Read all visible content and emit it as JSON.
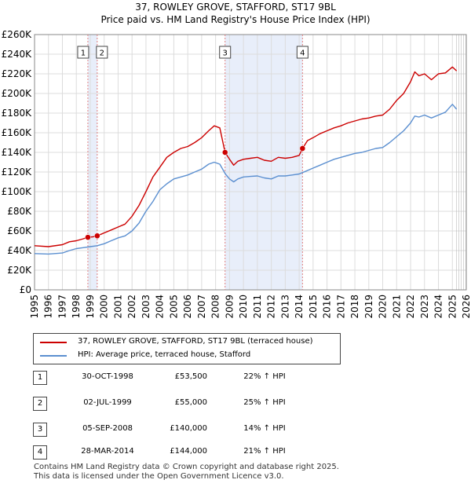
{
  "header": {
    "title": "37, ROWLEY GROVE, STAFFORD, ST17 9BL",
    "subtitle": "Price paid vs. HM Land Registry's House Price Index (HPI)"
  },
  "colors": {
    "property": "#cc0000",
    "hpi": "#5b8fd0",
    "shade": "#e8eefa",
    "grid": "#dcdcdc",
    "vline": "#e08080"
  },
  "chart_data": {
    "type": "line",
    "title": "Price paid vs. HM Land Registry's House Price Index (HPI)",
    "xlabel": "",
    "ylabel": "",
    "xlim": [
      1995,
      2026
    ],
    "ylim": [
      0,
      260000
    ],
    "y_ticks": [
      0,
      20000,
      40000,
      60000,
      80000,
      100000,
      120000,
      140000,
      160000,
      180000,
      200000,
      220000,
      240000,
      260000
    ],
    "y_tick_labels": [
      "£0",
      "£20K",
      "£40K",
      "£60K",
      "£80K",
      "£100K",
      "£120K",
      "£140K",
      "£160K",
      "£180K",
      "£200K",
      "£220K",
      "£240K",
      "£260K"
    ],
    "x_ticks": [
      1995,
      1996,
      1997,
      1998,
      1999,
      2000,
      2001,
      2002,
      2003,
      2004,
      2005,
      2006,
      2007,
      2008,
      2009,
      2010,
      2011,
      2012,
      2013,
      2014,
      2015,
      2016,
      2017,
      2018,
      2019,
      2020,
      2021,
      2022,
      2023,
      2024,
      2025,
      2026
    ],
    "x_tick_labels": [
      "1995",
      "1996",
      "1997",
      "1998",
      "1999",
      "2000",
      "2001",
      "2002",
      "2003",
      "2004",
      "2005",
      "2006",
      "2007",
      "2008",
      "2009",
      "2010",
      "2011",
      "2012",
      "2013",
      "2014",
      "2015",
      "2016",
      "2017",
      "2018",
      "2019",
      "2020",
      "2021",
      "2022",
      "2023",
      "2024",
      "2025",
      "2026"
    ],
    "grid": true,
    "series": [
      {
        "name": "37, ROWLEY GROVE, STAFFORD, ST17 9BL (terraced house)",
        "color": "#cc0000",
        "x": [
          1995.0,
          1996.0,
          1997.0,
          1997.5,
          1998.0,
          1998.5,
          1998.83,
          1999.2,
          1999.5,
          2000.0,
          2000.5,
          2001.0,
          2001.5,
          2002.0,
          2002.5,
          2003.0,
          2003.5,
          2004.0,
          2004.5,
          2005.0,
          2005.5,
          2006.0,
          2006.5,
          2007.0,
          2007.5,
          2007.9,
          2008.3,
          2008.68,
          2009.0,
          2009.3,
          2009.6,
          2010.0,
          2010.5,
          2011.0,
          2011.5,
          2012.0,
          2012.5,
          2013.0,
          2013.5,
          2014.0,
          2014.24,
          2014.6,
          2015.0,
          2015.5,
          2016.0,
          2016.5,
          2017.0,
          2017.5,
          2018.0,
          2018.5,
          2019.0,
          2019.5,
          2020.0,
          2020.5,
          2021.0,
          2021.5,
          2022.0,
          2022.3,
          2022.6,
          2023.0,
          2023.5,
          2024.0,
          2024.5,
          2025.0,
          2025.3
        ],
        "y": [
          45000,
          44000,
          46000,
          49000,
          50000,
          52000,
          53500,
          54000,
          55000,
          58000,
          61000,
          64000,
          67000,
          75000,
          86000,
          100000,
          115000,
          125000,
          135000,
          140000,
          144000,
          146000,
          150000,
          155000,
          162000,
          167000,
          165000,
          140000,
          133000,
          127000,
          131000,
          133000,
          134000,
          135000,
          132000,
          131000,
          135000,
          134000,
          135000,
          137000,
          144000,
          152000,
          155000,
          159000,
          162000,
          165000,
          167000,
          170000,
          172000,
          174000,
          175000,
          177000,
          178000,
          184000,
          193000,
          200000,
          212000,
          222000,
          218000,
          220000,
          214000,
          220000,
          221000,
          227000,
          223000
        ]
      },
      {
        "name": "HPI: Average price, terraced house, Stafford",
        "color": "#5b8fd0",
        "x": [
          1995.0,
          1996.0,
          1997.0,
          1997.5,
          1998.0,
          1998.5,
          1999.0,
          1999.5,
          2000.0,
          2000.5,
          2001.0,
          2001.5,
          2002.0,
          2002.5,
          2003.0,
          2003.5,
          2004.0,
          2004.5,
          2005.0,
          2005.5,
          2006.0,
          2006.5,
          2007.0,
          2007.5,
          2007.9,
          2008.3,
          2008.7,
          2009.0,
          2009.3,
          2009.6,
          2010.0,
          2010.5,
          2011.0,
          2011.5,
          2012.0,
          2012.5,
          2013.0,
          2013.5,
          2014.0,
          2014.5,
          2015.0,
          2015.5,
          2016.0,
          2016.5,
          2017.0,
          2017.5,
          2018.0,
          2018.5,
          2019.0,
          2019.5,
          2020.0,
          2020.5,
          2021.0,
          2021.5,
          2022.0,
          2022.3,
          2022.6,
          2023.0,
          2023.5,
          2024.0,
          2024.5,
          2025.0,
          2025.3
        ],
        "y": [
          37000,
          36500,
          37500,
          40000,
          42000,
          43000,
          44000,
          45000,
          47000,
          50000,
          53000,
          55000,
          60000,
          68000,
          80000,
          90000,
          102000,
          108000,
          113000,
          115000,
          117000,
          120000,
          123000,
          128000,
          130000,
          128000,
          118000,
          113000,
          110000,
          113000,
          115000,
          115500,
          116000,
          114000,
          113000,
          116000,
          116000,
          117000,
          118000,
          121000,
          124000,
          127000,
          130000,
          133000,
          135000,
          137000,
          139000,
          140000,
          142000,
          144000,
          145000,
          150000,
          156000,
          162000,
          170000,
          177000,
          176000,
          178000,
          175000,
          178000,
          181000,
          189000,
          184000
        ]
      }
    ],
    "transactions": [
      {
        "num": "1",
        "x": 1998.83,
        "y": 53500
      },
      {
        "num": "2",
        "x": 1999.5,
        "y": 55000
      },
      {
        "num": "3",
        "x": 2008.68,
        "y": 140000
      },
      {
        "num": "4",
        "x": 2014.24,
        "y": 144000
      }
    ],
    "shaded_ranges": [
      [
        1998.83,
        1999.5
      ],
      [
        2008.68,
        2014.24
      ]
    ],
    "forecast_start": 2025.3
  },
  "legend": {
    "property_label": "37, ROWLEY GROVE, STAFFORD, ST17 9BL (terraced house)",
    "hpi_label": "HPI: Average price, terraced house, Stafford"
  },
  "transactions_table": [
    {
      "num": "1",
      "date": "30-OCT-1998",
      "price": "£53,500",
      "hpi": "22% ↑ HPI"
    },
    {
      "num": "2",
      "date": "02-JUL-1999",
      "price": "£55,000",
      "hpi": "25% ↑ HPI"
    },
    {
      "num": "3",
      "date": "05-SEP-2008",
      "price": "£140,000",
      "hpi": "14% ↑ HPI"
    },
    {
      "num": "4",
      "date": "28-MAR-2014",
      "price": "£144,000",
      "hpi": "21% ↑ HPI"
    }
  ],
  "footer": {
    "line1": "Contains HM Land Registry data © Crown copyright and database right 2025.",
    "line2": "This data is licensed under the Open Government Licence v3.0."
  }
}
